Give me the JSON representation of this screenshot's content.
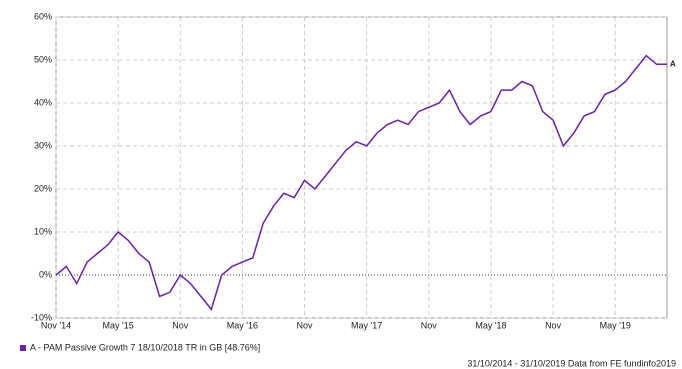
{
  "chart_data": {
    "type": "line",
    "x": [
      "2014-11",
      "2014-12",
      "2015-01",
      "2015-02",
      "2015-03",
      "2015-04",
      "2015-05",
      "2015-06",
      "2015-07",
      "2015-08",
      "2015-09",
      "2015-10",
      "2015-11",
      "2015-12",
      "2016-01",
      "2016-02",
      "2016-03",
      "2016-04",
      "2016-05",
      "2016-06",
      "2016-07",
      "2016-08",
      "2016-09",
      "2016-10",
      "2016-11",
      "2016-12",
      "2017-01",
      "2017-02",
      "2017-03",
      "2017-04",
      "2017-05",
      "2017-06",
      "2017-07",
      "2017-08",
      "2017-09",
      "2017-10",
      "2017-11",
      "2017-12",
      "2018-01",
      "2018-02",
      "2018-03",
      "2018-04",
      "2018-05",
      "2018-06",
      "2018-07",
      "2018-08",
      "2018-09",
      "2018-10",
      "2018-11",
      "2018-12",
      "2019-01",
      "2019-02",
      "2019-03",
      "2019-04",
      "2019-05",
      "2019-06",
      "2019-07",
      "2019-08",
      "2019-09",
      "2019-10"
    ],
    "series": [
      {
        "name": "A - PAM Passive Growth 7 18/10/2018 TR in GB [48.76%]",
        "label": "A",
        "color": "#6a1fb0",
        "values": [
          0,
          2,
          -2,
          3,
          5,
          7,
          10,
          8,
          5,
          3,
          -5,
          -4,
          0,
          -2,
          -5,
          -8,
          0,
          2,
          3,
          4,
          12,
          16,
          19,
          18,
          22,
          20,
          23,
          26,
          29,
          31,
          30,
          33,
          35,
          36,
          35,
          38,
          39,
          40,
          43,
          38,
          35,
          37,
          38,
          43,
          43,
          45,
          44,
          38,
          36,
          30,
          33,
          37,
          38,
          42,
          43,
          45,
          48,
          51,
          49,
          49
        ]
      }
    ],
    "xlim": [
      "2014-11",
      "2019-10"
    ],
    "xticks": [
      {
        "value": "2014-11",
        "label": "Nov '14"
      },
      {
        "value": "2015-05",
        "label": "May '15"
      },
      {
        "value": "2015-11",
        "label": "Nov"
      },
      {
        "value": "2016-05",
        "label": "May '16"
      },
      {
        "value": "2016-11",
        "label": "Nov"
      },
      {
        "value": "2017-05",
        "label": "May '17"
      },
      {
        "value": "2017-11",
        "label": "Nov"
      },
      {
        "value": "2018-05",
        "label": "May '18"
      },
      {
        "value": "2018-11",
        "label": "Nov"
      },
      {
        "value": "2019-05",
        "label": "May '19"
      }
    ],
    "ylim": [
      -10,
      60
    ],
    "yticks": [
      {
        "value": -10,
        "label": "-10%"
      },
      {
        "value": 0,
        "label": "0%"
      },
      {
        "value": 10,
        "label": "10%"
      },
      {
        "value": 20,
        "label": "20%"
      },
      {
        "value": 30,
        "label": "30%"
      },
      {
        "value": 40,
        "label": "40%"
      },
      {
        "value": 50,
        "label": "50%"
      },
      {
        "value": 60,
        "label": "60%"
      }
    ],
    "grid": true,
    "source": "31/10/2014 - 31/10/2019 Data from FE fundinfo2019"
  }
}
